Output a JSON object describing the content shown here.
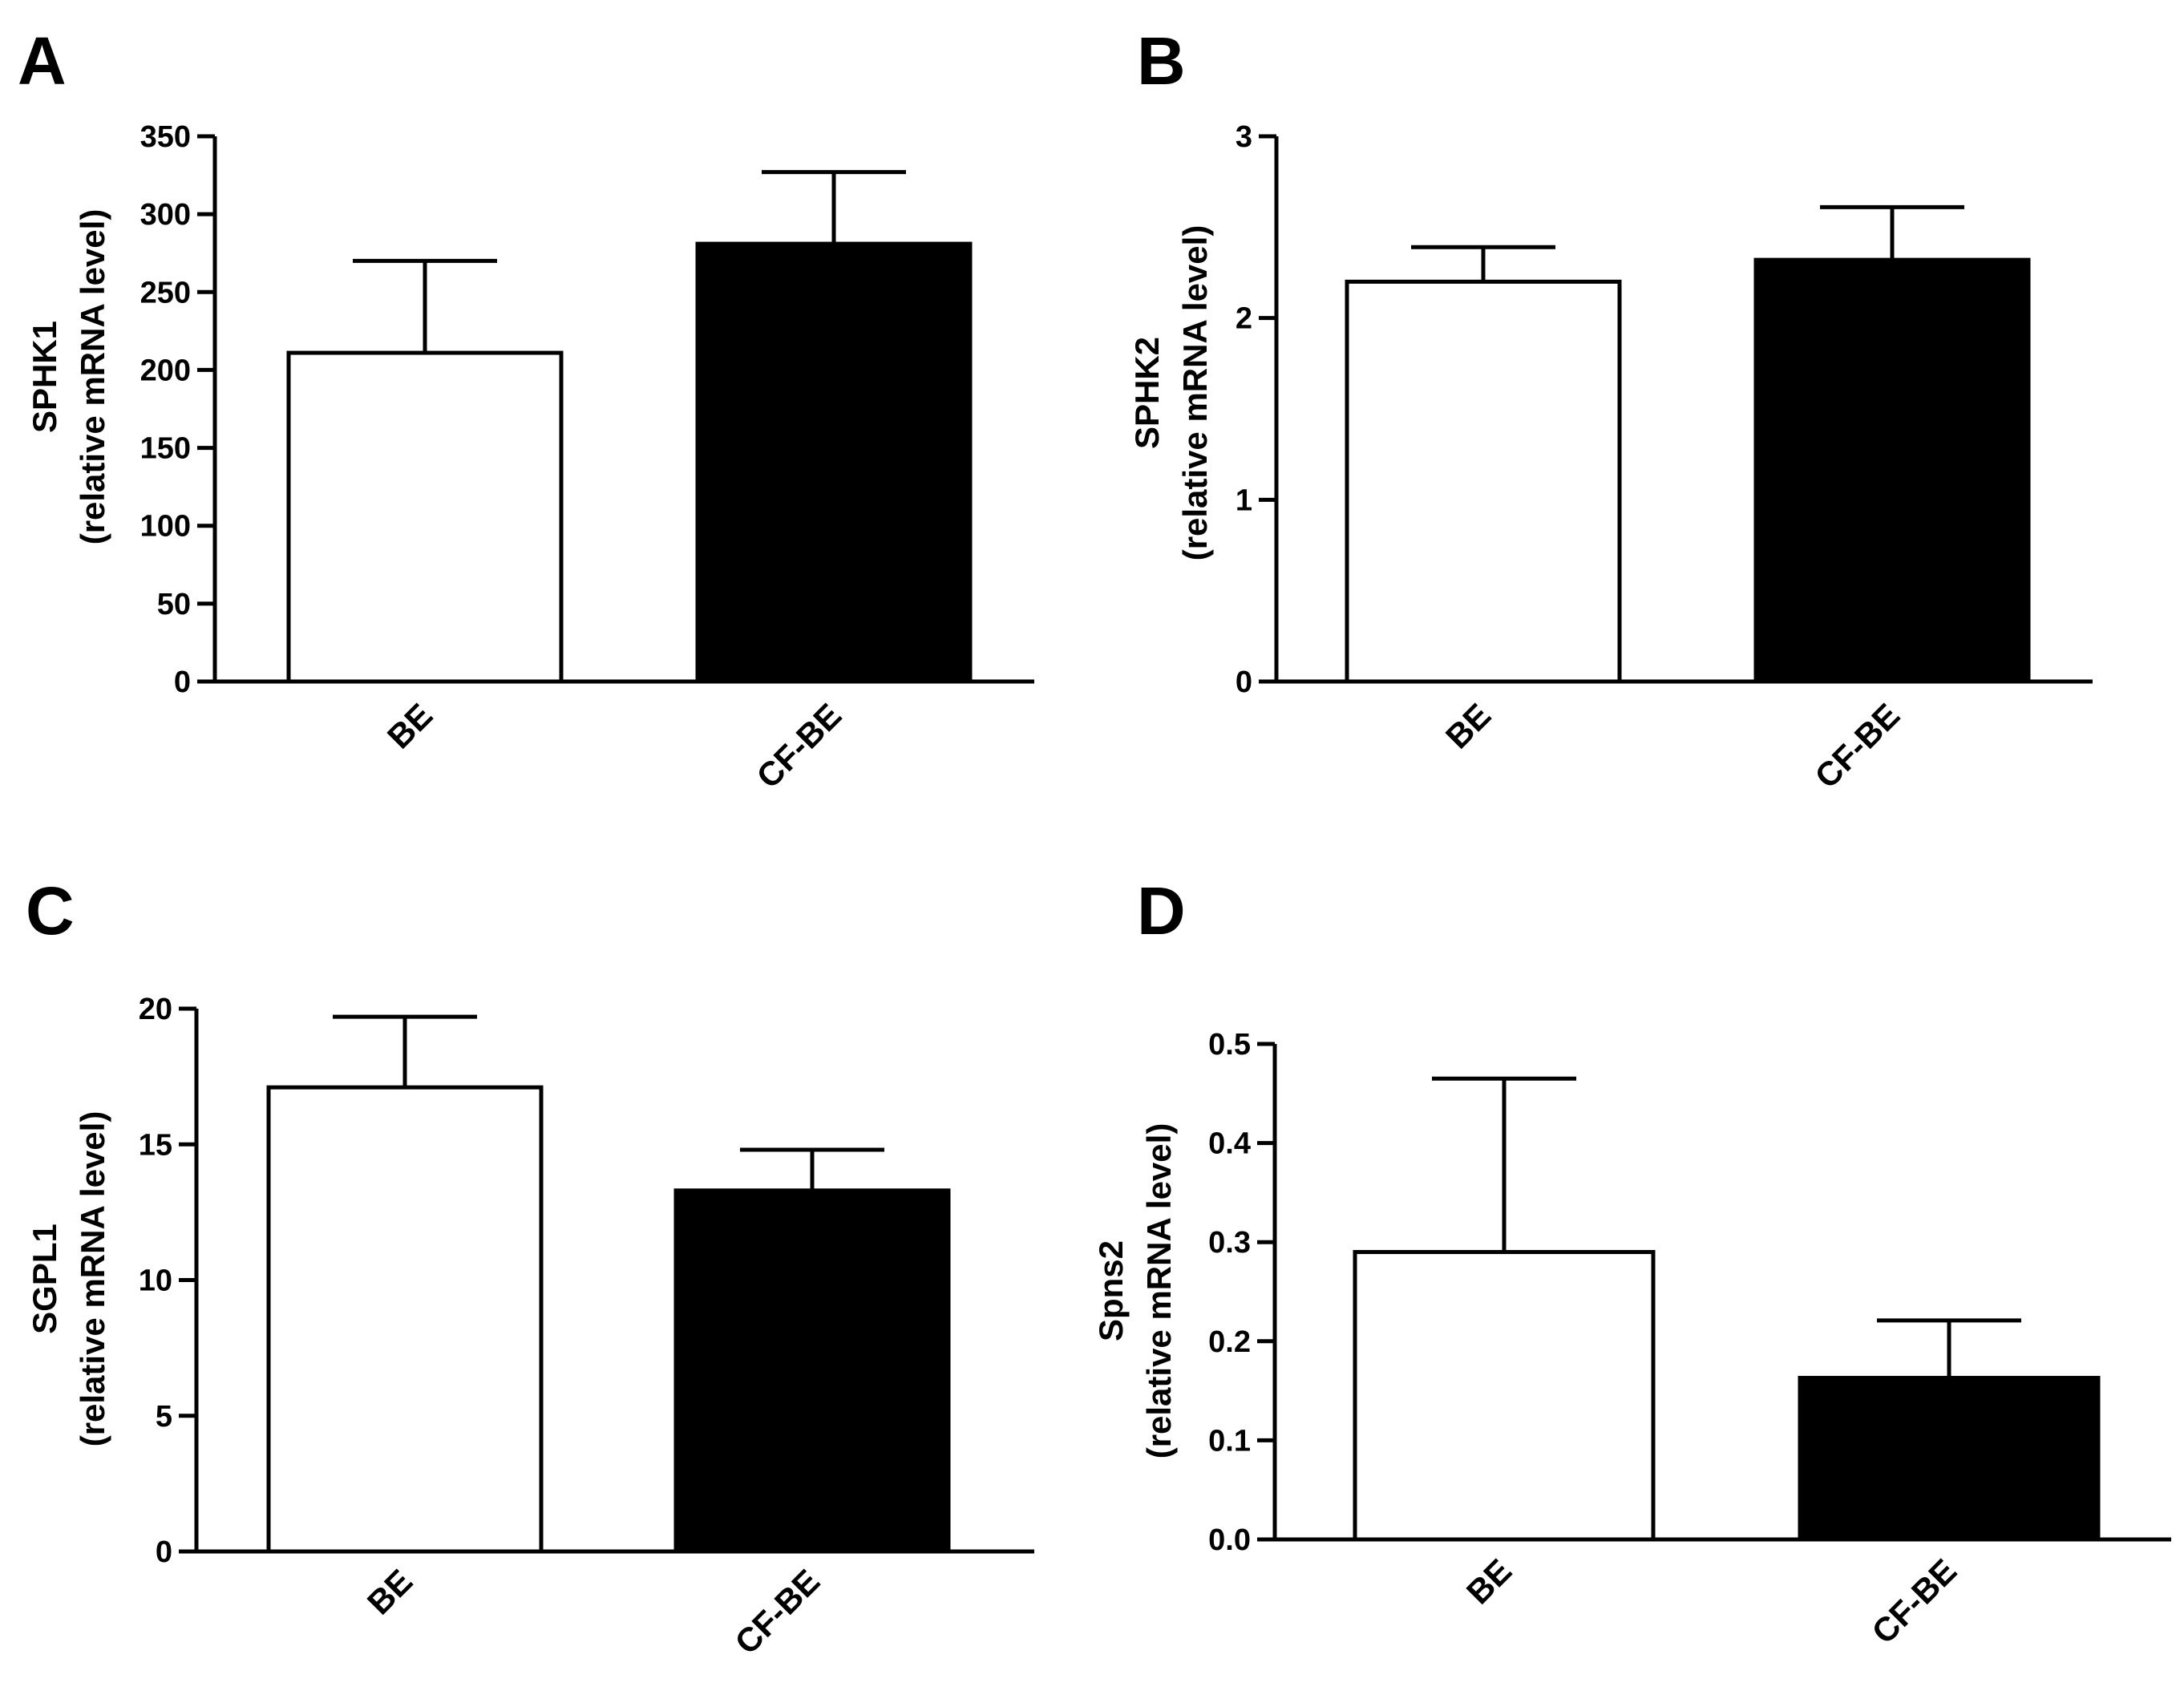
{
  "figure": {
    "bar_colors": {
      "BE": "#ffffff",
      "CF-BE": "#000000"
    },
    "stroke_color": "#000000"
  },
  "chart_data": [
    {
      "panel": "A",
      "type": "bar",
      "categories": [
        "BE",
        "CF-BE"
      ],
      "values": [
        211,
        281
      ],
      "errors": [
        59,
        46
      ],
      "ylabel_lines": [
        "SPHK1",
        "(relative mRNA level)"
      ],
      "ylim": [
        0,
        350
      ],
      "yticks": [
        0,
        50,
        100,
        150,
        200,
        250,
        300,
        350
      ],
      "ytick_labels": [
        "0",
        "50",
        "100",
        "150",
        "200",
        "250",
        "300",
        "350"
      ]
    },
    {
      "panel": "B",
      "type": "bar",
      "categories": [
        "BE",
        "CF-BE"
      ],
      "values": [
        2.2,
        2.32
      ],
      "errors": [
        0.19,
        0.29
      ],
      "ylabel_lines": [
        "SPHK2",
        "(relative mRNA level)"
      ],
      "ylim": [
        0,
        3
      ],
      "yticks": [
        0,
        1,
        2,
        3
      ],
      "ytick_labels": [
        "0",
        "1",
        "2",
        "3"
      ]
    },
    {
      "panel": "C",
      "type": "bar",
      "categories": [
        "BE",
        "CF-BE"
      ],
      "values": [
        17.1,
        13.3
      ],
      "errors": [
        2.6,
        1.5
      ],
      "ylabel_lines": [
        "SGPL1",
        "(relative mRNA level)"
      ],
      "ylim": [
        0,
        20
      ],
      "yticks": [
        0,
        5,
        10,
        15,
        20
      ],
      "ytick_labels": [
        "0",
        "5",
        "10",
        "15",
        "20"
      ]
    },
    {
      "panel": "D",
      "type": "bar",
      "categories": [
        "BE",
        "CF-BE"
      ],
      "values": [
        0.29,
        0.163
      ],
      "errors": [
        0.175,
        0.058
      ],
      "ylabel_lines": [
        "Spns2",
        "(relative mRNA level)"
      ],
      "ylim": [
        0,
        0.5
      ],
      "yticks": [
        0,
        0.1,
        0.2,
        0.3,
        0.4,
        0.5
      ],
      "ytick_labels": [
        "0.0",
        "0.1",
        "0.2",
        "0.3",
        "0.4",
        "0.5"
      ]
    }
  ]
}
